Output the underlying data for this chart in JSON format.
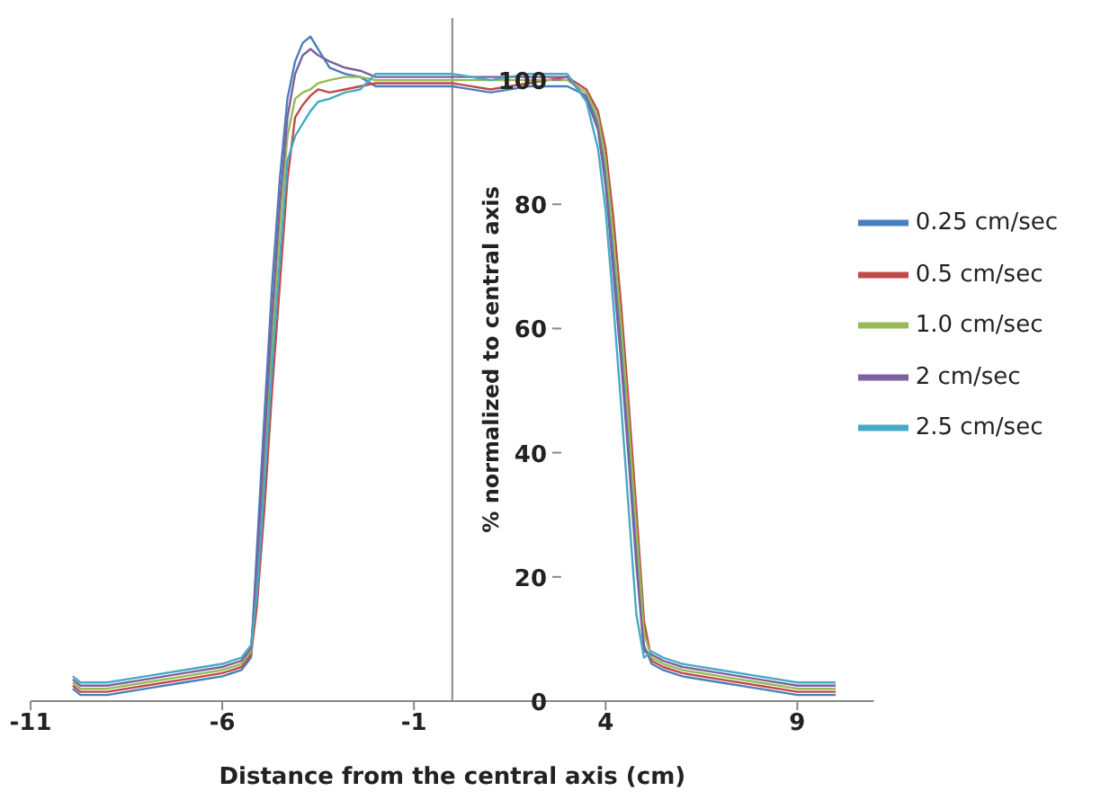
{
  "chart_data": {
    "type": "line",
    "xlabel": "Distance from the central axis (cm)",
    "ylabel": "% normalized to central axis",
    "x": [
      -9.9,
      -9.7,
      -9,
      -8,
      -7,
      -6,
      -5.5,
      -5.25,
      -5.1,
      -4.9,
      -4.7,
      -4.5,
      -4.3,
      -4.1,
      -3.9,
      -3.7,
      -3.5,
      -3.2,
      -2.8,
      -2.4,
      -2,
      -1.5,
      -1,
      0,
      1,
      2,
      3,
      3.5,
      3.8,
      4,
      4.2,
      4.4,
      4.6,
      4.8,
      5,
      5.2,
      5.5,
      6,
      7,
      8,
      9,
      10
    ],
    "series": [
      {
        "name": "0.25 cm/sec",
        "color": "#4a7ebb",
        "values": [
          2,
          1,
          1,
          2,
          3,
          4,
          5,
          7,
          24,
          46,
          67,
          84,
          97,
          103,
          106,
          107,
          105,
          102,
          101,
          100.5,
          99,
          99,
          99,
          99,
          98,
          99,
          99,
          97.5,
          93,
          85,
          72,
          58,
          42,
          25,
          9,
          6,
          5,
          4,
          3,
          2,
          1,
          1
        ]
      },
      {
        "name": "0.5 cm/sec",
        "color": "#be4b48",
        "values": [
          2.5,
          1.5,
          1.5,
          2.5,
          3.5,
          4.5,
          5.5,
          7.5,
          15,
          31,
          50,
          67,
          84,
          94,
          96,
          97.5,
          98.5,
          98,
          98.5,
          99,
          99.5,
          99.5,
          99.5,
          99.5,
          98.5,
          99.5,
          100.5,
          98.5,
          95,
          89,
          78,
          64,
          48,
          31,
          13,
          6.5,
          5.5,
          4.5,
          3.5,
          2.5,
          1.5,
          1.5
        ]
      },
      {
        "name": "1.0 cm/sec",
        "color": "#98b954",
        "values": [
          3,
          2,
          2,
          3,
          4,
          5,
          6,
          8,
          19,
          38,
          58,
          76,
          91,
          97,
          98,
          98.5,
          99.5,
          100,
          100.5,
          100.5,
          100,
          100,
          100,
          100,
          100,
          100,
          100,
          98,
          94,
          87,
          75,
          61,
          45,
          28,
          11,
          7,
          6,
          5,
          4,
          3,
          2,
          2
        ]
      },
      {
        "name": "2 cm/sec",
        "color": "#7d60a0",
        "values": [
          3.5,
          2.5,
          2.5,
          3.5,
          4.5,
          5.5,
          6.5,
          8.5,
          21,
          42,
          62,
          80,
          94,
          101,
          104,
          105,
          104,
          103,
          102,
          101.5,
          100.5,
          100.5,
          100.5,
          100.5,
          100.5,
          100.5,
          100.5,
          97,
          92,
          83,
          69,
          55,
          39,
          22,
          8,
          7.5,
          6.5,
          5.5,
          4.5,
          3.5,
          2.5,
          2.5
        ]
      },
      {
        "name": "2.5 cm/sec",
        "color": "#46aac5",
        "values": [
          4,
          3,
          3,
          4,
          5,
          6,
          7,
          9,
          17,
          35,
          54,
          71,
          87,
          91,
          93,
          95,
          96.5,
          97,
          98,
          98.5,
          101,
          101,
          101,
          101,
          100,
          101,
          101,
          96.5,
          89,
          79,
          64,
          48,
          31,
          14,
          7,
          8,
          7,
          6,
          5,
          4,
          3,
          3
        ]
      }
    ],
    "xlim": [
      -11,
      11
    ],
    "xticks": [
      -11,
      -6,
      -1,
      4,
      9
    ],
    "ylim": [
      0,
      110
    ],
    "yticks": [
      0,
      20,
      40,
      60,
      80,
      100
    ],
    "grid": false,
    "legend": "right",
    "marker": "none",
    "line_style": "solid"
  }
}
